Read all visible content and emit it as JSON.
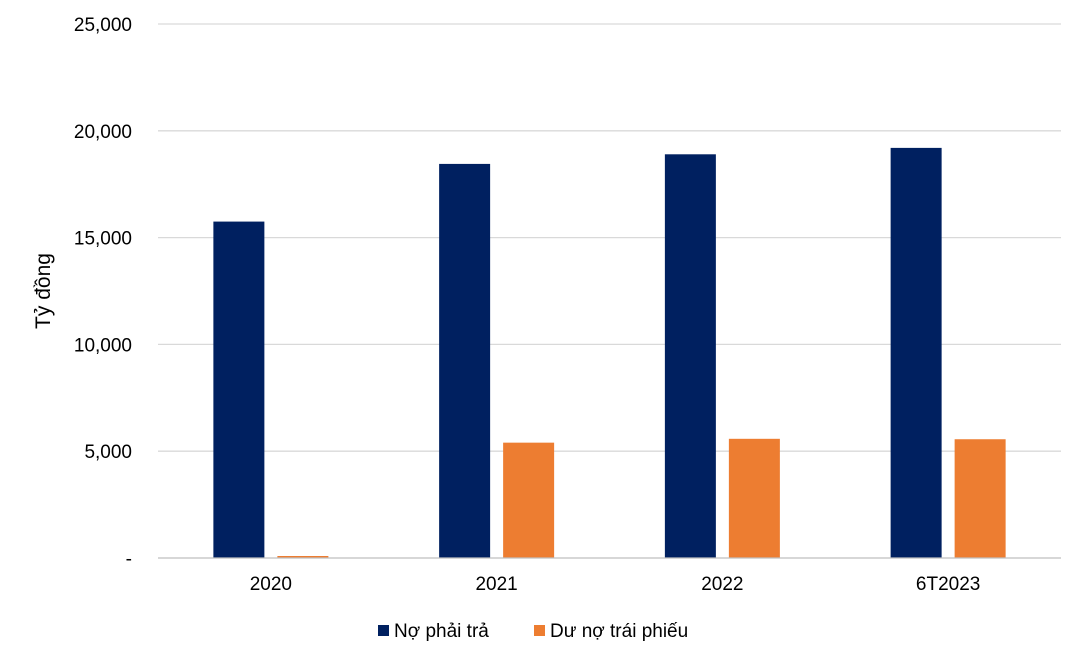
{
  "chart_data": {
    "type": "bar",
    "categories": [
      "2020",
      "2021",
      "2022",
      "6T2023"
    ],
    "series": [
      {
        "name": "Nợ phải trả",
        "color": "#002060",
        "values": [
          15750,
          18450,
          18900,
          19200
        ]
      },
      {
        "name": "Dư nợ trái phiếu",
        "color": "#ED7D31",
        "values": [
          80,
          5400,
          5580,
          5560
        ]
      }
    ],
    "ylabel": "Tỷ đồng",
    "ylim": [
      0,
      25000
    ],
    "yticks": [
      0,
      5000,
      10000,
      15000,
      20000,
      25000
    ],
    "ytick_labels": [
      "-",
      "5,000",
      "10,000",
      "15,000",
      "20,000",
      "25,000"
    ],
    "grid": true,
    "legend_position": "bottom"
  }
}
